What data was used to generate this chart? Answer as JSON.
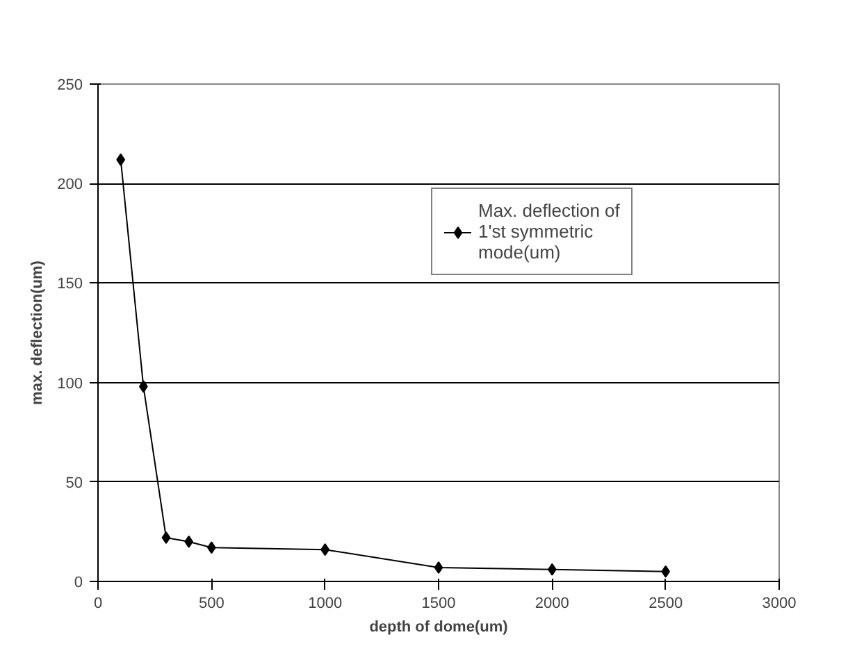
{
  "chart_data": {
    "type": "line",
    "xlabel": "depth of dome(um)",
    "ylabel": "max. deflection(um)",
    "x": [
      100,
      200,
      300,
      400,
      500,
      1000,
      1500,
      2000,
      2500
    ],
    "series": [
      {
        "name": "Max. deflection of 1'st symmetric mode(um)",
        "color": "#000000",
        "values": [
          212,
          98,
          22,
          20,
          17,
          16,
          7,
          6,
          5
        ]
      }
    ],
    "xlim": [
      0,
      3000
    ],
    "xticks": [
      0,
      500,
      1000,
      1500,
      2000,
      2500,
      3000
    ],
    "ylim": [
      0,
      250
    ],
    "yticks": [
      0,
      50,
      100,
      150,
      200,
      250
    ],
    "grid": "y",
    "legend": "top right",
    "marker": "diamond",
    "line_style": "solid"
  }
}
